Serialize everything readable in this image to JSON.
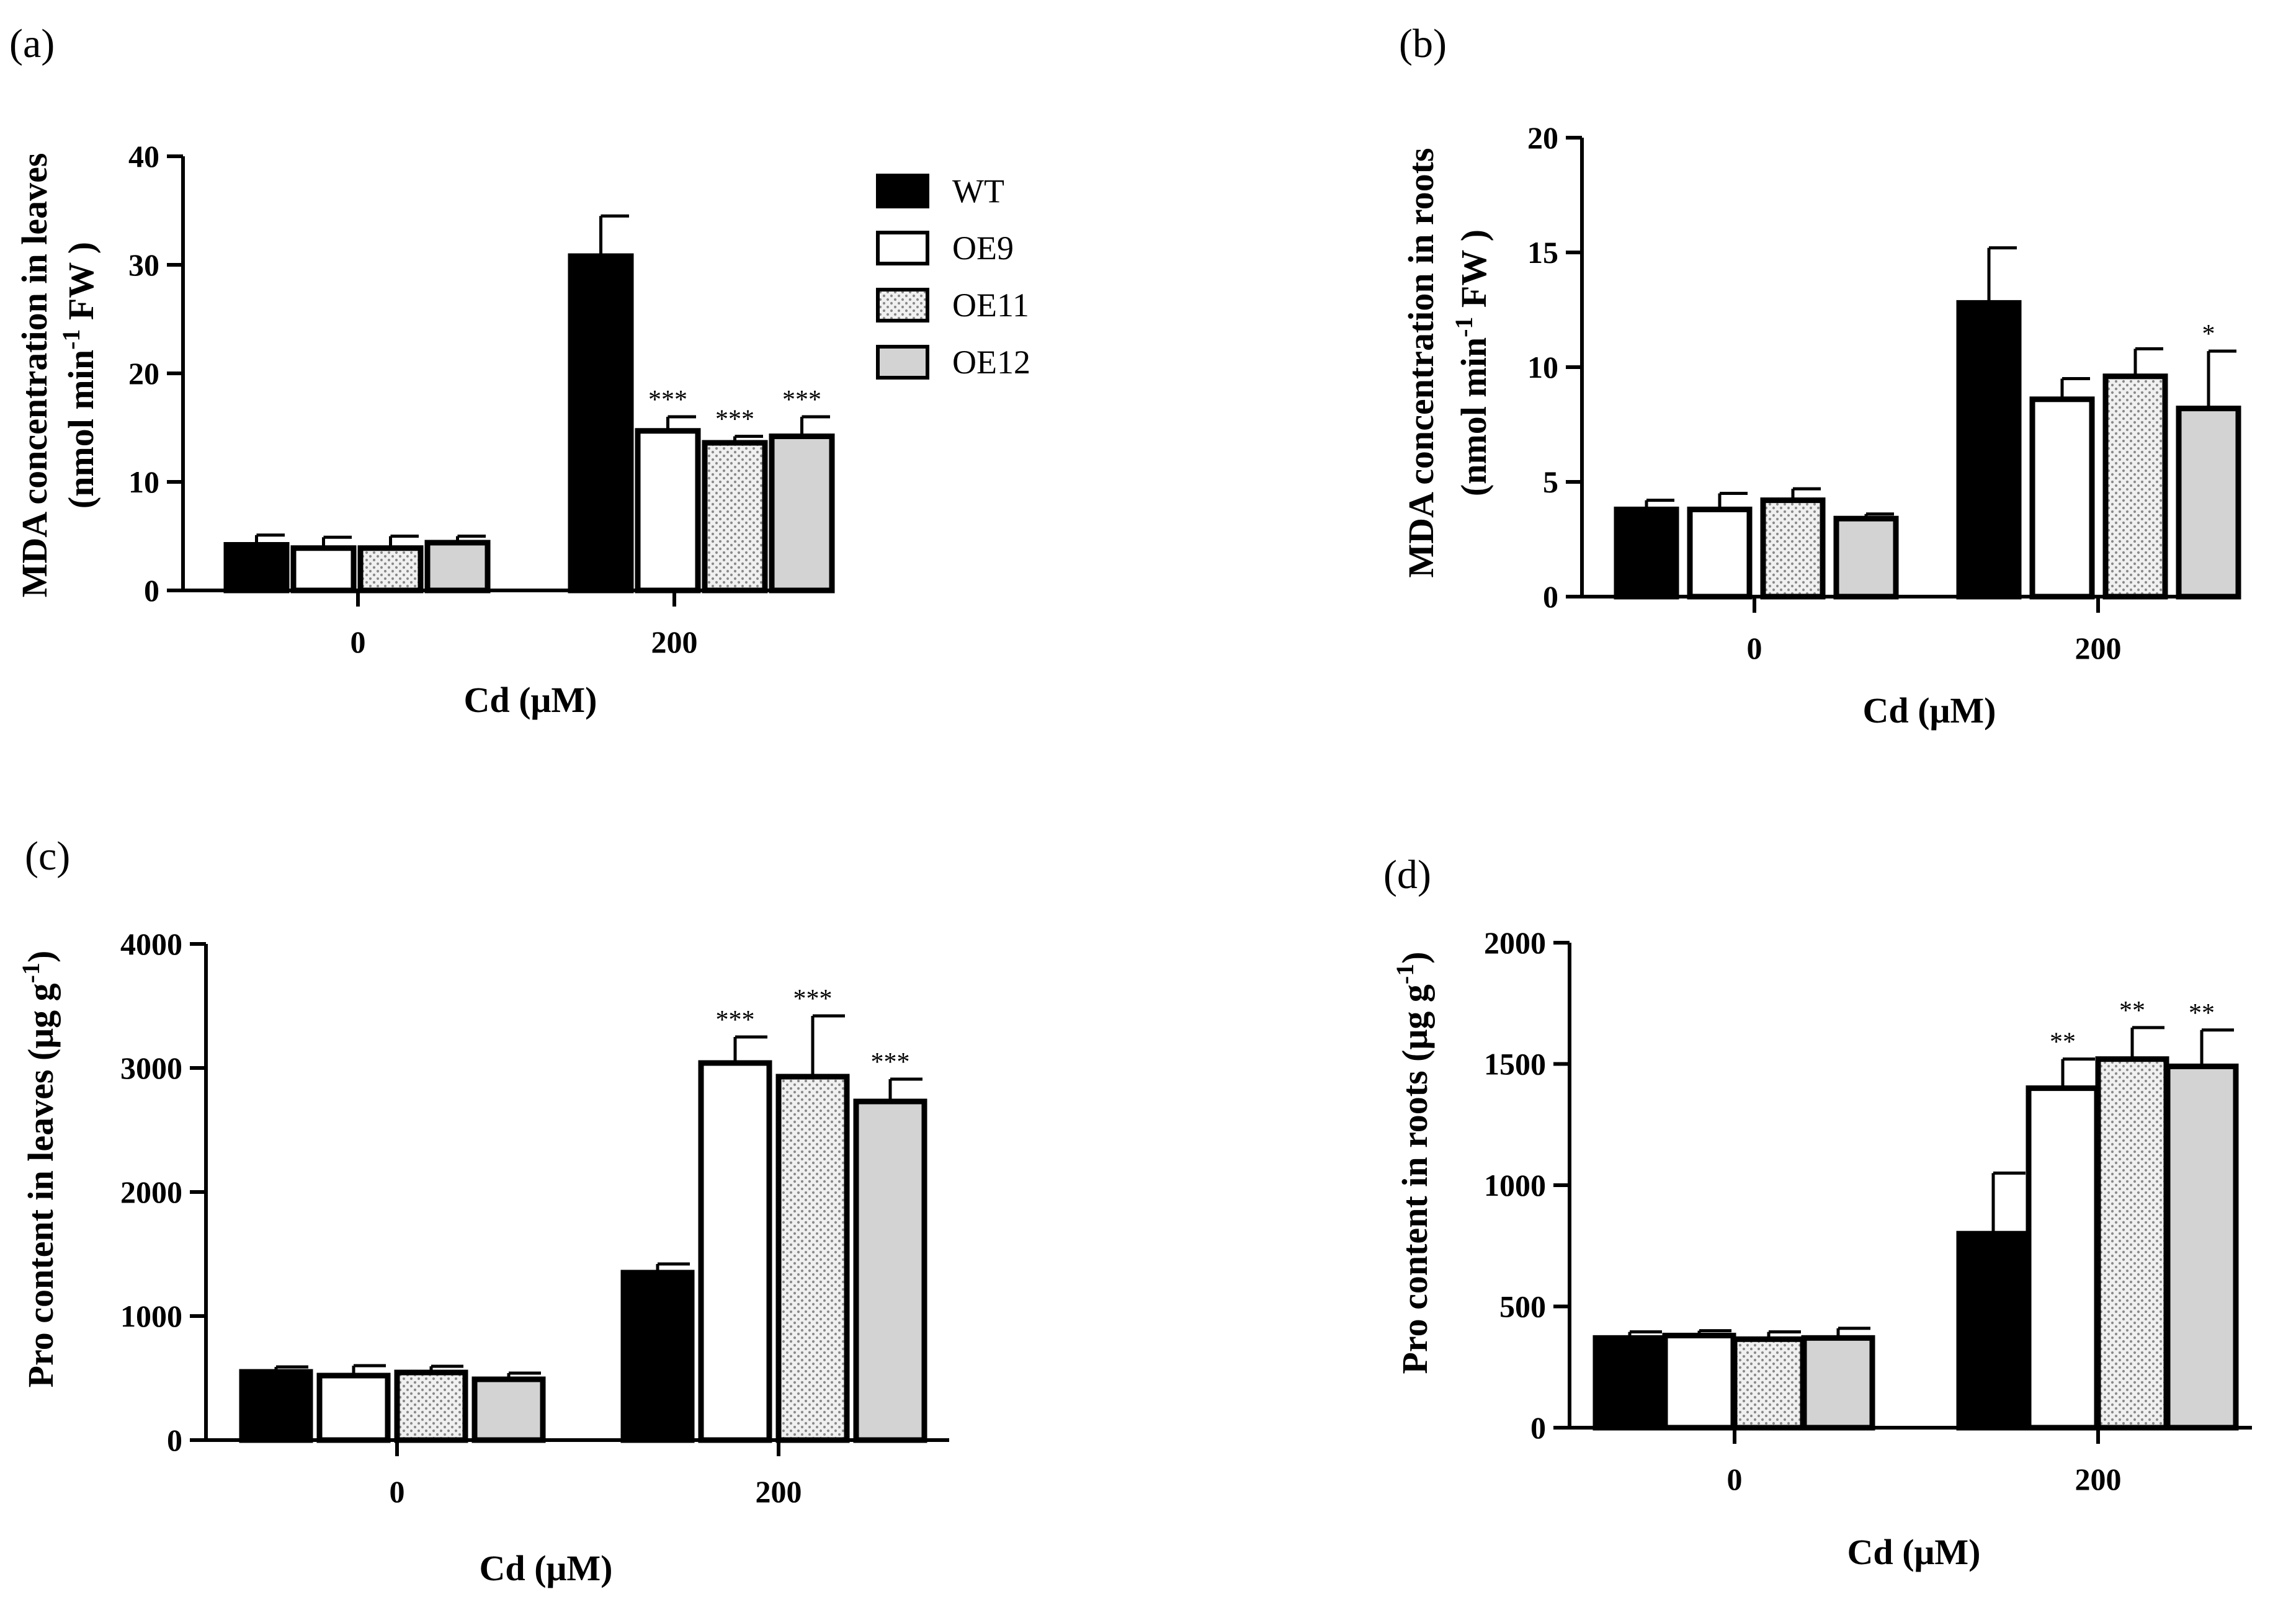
{
  "chart_data": [
    {
      "id": "a",
      "type": "bar",
      "panel_label": "(a)",
      "title": "",
      "ylabel": "MDA concentration in leaves",
      "ylabel_unit_prefix": "(nmol min",
      "ylabel_unit_sup": "-1",
      "ylabel_unit_suffix": " FW )",
      "xlabel": "Cd (μM)",
      "ylim": [
        0,
        40
      ],
      "yticks": [
        0,
        10,
        20,
        30,
        40
      ],
      "categories": [
        "0",
        "200"
      ],
      "series": [
        {
          "name": "WT",
          "values": [
            4.2,
            30.8
          ],
          "errors": [
            0.9,
            3.7
          ],
          "sig": [
            "",
            ""
          ]
        },
        {
          "name": "OE9",
          "values": [
            3.9,
            14.7
          ],
          "errors": [
            1.0,
            1.3
          ],
          "sig": [
            "",
            "***"
          ]
        },
        {
          "name": "OE11",
          "values": [
            3.9,
            13.6
          ],
          "errors": [
            1.1,
            0.6
          ],
          "sig": [
            "",
            "***"
          ]
        },
        {
          "name": "OE12",
          "values": [
            4.4,
            14.2
          ],
          "errors": [
            0.6,
            1.8
          ],
          "sig": [
            "",
            "***"
          ]
        }
      ]
    },
    {
      "id": "b",
      "type": "bar",
      "panel_label": "(b)",
      "title": "",
      "ylabel": "MDA concentration in roots",
      "ylabel_unit_prefix": "(nmol min",
      "ylabel_unit_sup": "-1",
      "ylabel_unit_suffix": " FW )",
      "xlabel": "Cd (μM)",
      "ylim": [
        0,
        20
      ],
      "yticks": [
        0,
        5,
        10,
        15,
        20
      ],
      "categories": [
        "0",
        "200"
      ],
      "series": [
        {
          "name": "WT",
          "values": [
            3.8,
            12.8
          ],
          "errors": [
            0.4,
            2.4
          ],
          "sig": [
            "",
            ""
          ]
        },
        {
          "name": "OE9",
          "values": [
            3.8,
            8.6
          ],
          "errors": [
            0.7,
            0.9
          ],
          "sig": [
            "",
            ""
          ]
        },
        {
          "name": "OE11",
          "values": [
            4.2,
            9.6
          ],
          "errors": [
            0.5,
            1.2
          ],
          "sig": [
            "",
            ""
          ]
        },
        {
          "name": "OE12",
          "values": [
            3.4,
            8.2
          ],
          "errors": [
            0.2,
            2.5
          ],
          "sig": [
            "",
            "*"
          ]
        }
      ]
    },
    {
      "id": "c",
      "type": "bar",
      "panel_label": "(c)",
      "title": "",
      "ylabel": "Pro content in leaves (μg g",
      "ylabel_sup": "-1",
      "ylabel_suffix": ")",
      "xlabel": "Cd (μM)",
      "ylim": [
        0,
        4000
      ],
      "yticks": [
        0,
        1000,
        2000,
        3000,
        4000
      ],
      "categories": [
        "0",
        "200"
      ],
      "series": [
        {
          "name": "WT",
          "values": [
            550,
            1350
          ],
          "errors": [
            40,
            70
          ],
          "sig": [
            "",
            ""
          ]
        },
        {
          "name": "OE9",
          "values": [
            520,
            3040
          ],
          "errors": [
            80,
            210
          ],
          "sig": [
            "",
            "***"
          ]
        },
        {
          "name": "OE11",
          "values": [
            545,
            2930
          ],
          "errors": [
            50,
            490
          ],
          "sig": [
            "",
            "***"
          ]
        },
        {
          "name": "OE12",
          "values": [
            490,
            2730
          ],
          "errors": [
            50,
            180
          ],
          "sig": [
            "",
            "***"
          ]
        }
      ]
    },
    {
      "id": "d",
      "type": "bar",
      "panel_label": "(d)",
      "title": "",
      "ylabel": "Pro content in roots (μg g",
      "ylabel_sup": "-1",
      "ylabel_suffix": ")",
      "xlabel": "Cd (μM)",
      "ylim": [
        0,
        2000
      ],
      "yticks": [
        0,
        500,
        1000,
        1500,
        2000
      ],
      "categories": [
        "0",
        "200"
      ],
      "series": [
        {
          "name": "WT",
          "values": [
            370,
            800
          ],
          "errors": [
            25,
            250
          ],
          "sig": [
            "",
            ""
          ]
        },
        {
          "name": "OE9",
          "values": [
            380,
            1400
          ],
          "errors": [
            20,
            120
          ],
          "sig": [
            "",
            "**"
          ]
        },
        {
          "name": "OE11",
          "values": [
            365,
            1520
          ],
          "errors": [
            30,
            130
          ],
          "sig": [
            "",
            "**"
          ]
        },
        {
          "name": "OE12",
          "values": [
            370,
            1490
          ],
          "errors": [
            40,
            150
          ],
          "sig": [
            "",
            "**"
          ]
        }
      ]
    }
  ],
  "legend": {
    "position": "right-of-panel-a",
    "entries": [
      {
        "name": "WT",
        "style": "solid-black"
      },
      {
        "name": "OE9",
        "style": "white"
      },
      {
        "name": "OE11",
        "style": "dotted"
      },
      {
        "name": "OE12",
        "style": "light-gray"
      }
    ]
  },
  "colors": {
    "WT": "#000000",
    "OE9": "#ffffff",
    "OE11_dot": "#8a8a8a",
    "OE11_bg": "#f0f0f0",
    "OE12": "#d3d3d3",
    "axis": "#000000"
  }
}
